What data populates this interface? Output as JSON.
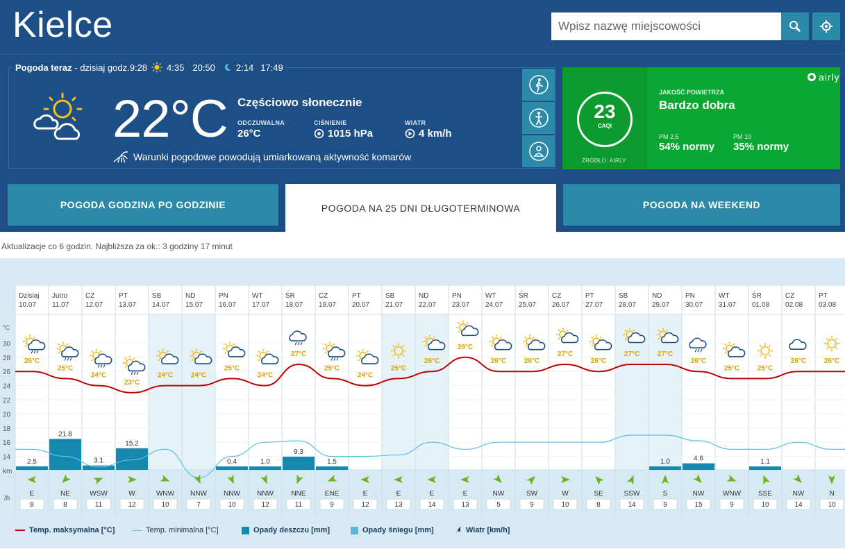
{
  "header": {
    "city": "Kielce",
    "search_placeholder": "Wpisz nazwę miejscowości"
  },
  "now": {
    "label": "Pogoda teraz",
    "day_time": "- dzisiaj godz.9:28",
    "sunrise": "4:35",
    "sunset": "20:50",
    "moonrise": "2:14",
    "moonset": "17:49",
    "temperature": "22°C",
    "condition": "Częściowo słonecznie",
    "feels_label": "ODCZUWALNA",
    "feels_value": "26°C",
    "pressure_label": "CIŚNIENIE",
    "pressure_value": "1015 hPa",
    "wind_label": "WIATR",
    "wind_value": "4 km/h",
    "mosquito_text": "Warunki pogodowe powodują umiarkowaną aktywność komarów"
  },
  "air": {
    "value": "23",
    "unit": "CAQI",
    "brand": "airly",
    "quality_label": "JAKOŚĆ POWIETRZA",
    "quality_value": "Bardzo dobra",
    "pm25_label": "PM 2.5",
    "pm25_value": "54% normy",
    "pm10_label": "PM 10",
    "pm10_value": "35% normy",
    "source": "ŹRÓDŁO: AIRLY",
    "color": "#0aa832"
  },
  "tabs": [
    {
      "label": "POGODA GODZINA PO GODZINIE",
      "active": false
    },
    {
      "label": "POGODA NA 25 DNI DŁUGOTERMINOWA",
      "active": true
    },
    {
      "label": "POGODA NA WEEKEND",
      "active": false
    }
  ],
  "update_text": "Aktualizacje co 6 godzin. Najbliższa za ok.: 3 godziny 17 minut",
  "chart_data": {
    "type": "line",
    "days": [
      "Dzisiaj",
      "Jutro",
      "CZ",
      "PT",
      "SB",
      "ND",
      "PN",
      "WT",
      "ŚR",
      "CZ",
      "PT",
      "SB",
      "ND",
      "PN",
      "WT",
      "ŚR",
      "CZ",
      "PT",
      "SB",
      "ND",
      "PN",
      "WT",
      "ŚR",
      "CZ",
      "PT"
    ],
    "dates": [
      "10.07",
      "11.07",
      "12.07",
      "13.07",
      "14.07",
      "15.07",
      "16.07",
      "17.07",
      "18.07",
      "19.07",
      "20.07",
      "21.07",
      "22.07",
      "23.07",
      "24.07",
      "25.07",
      "26.07",
      "27.07",
      "28.07",
      "29.07",
      "30.07",
      "31.07",
      "01.08",
      "02.08",
      "03.08"
    ],
    "weekend": [
      false,
      false,
      false,
      false,
      true,
      true,
      false,
      false,
      false,
      false,
      false,
      true,
      true,
      false,
      false,
      false,
      false,
      false,
      true,
      true,
      false,
      false,
      false,
      false,
      false
    ],
    "icons": [
      "sun-cloud-rain",
      "sun-cloud-rain",
      "sun-cloud-rain",
      "sun-cloud-rain",
      "sun-cloud",
      "sun-cloud",
      "sun-cloud",
      "sun-cloud",
      "cloud-rain",
      "sun-cloud-rain",
      "sun-cloud",
      "sun",
      "sun-cloud",
      "sun-cloud",
      "sun-cloud",
      "sun-cloud",
      "sun-cloud",
      "sun-cloud",
      "sun-cloud",
      "sun-cloud",
      "cloud-rain",
      "sun-cloud",
      "sun",
      "cloud",
      "sun"
    ],
    "temp_max": [
      26,
      25,
      24,
      23,
      24,
      24,
      25,
      24,
      27,
      25,
      24,
      25,
      26,
      28,
      26,
      26,
      27,
      26,
      27,
      27,
      26,
      25,
      25,
      26,
      26
    ],
    "temp_max_labels": [
      "26°C",
      "25°C",
      "24°C",
      "23°C",
      "24°C",
      "24°C",
      "25°C",
      "24°C",
      "27°C",
      "25°C",
      "24°C",
      "25°C",
      "26°C",
      "28°C",
      "26°C",
      "26°C",
      "27°C",
      "26°C",
      "27°C",
      "27°C",
      "26°C",
      "25°C",
      "25°C",
      "26°C",
      "26°C"
    ],
    "temp_min": [
      15,
      14,
      12.5,
      13.5,
      15,
      11,
      14,
      16,
      16.2,
      14,
      14,
      14.2,
      16,
      15,
      16,
      16,
      16,
      16,
      17,
      17,
      16.2,
      15,
      15,
      16,
      15
    ],
    "rain": [
      2.5,
      21.8,
      3.1,
      15.2,
      0,
      0,
      0.4,
      1.0,
      9.3,
      1.5,
      0,
      0,
      0,
      0,
      0,
      0,
      0,
      0,
      0,
      1.0,
      4.6,
      0,
      1.1,
      0,
      0
    ],
    "rain_labels": [
      "2.5",
      "21.8",
      "3.1",
      "15.2",
      "",
      "",
      "0.4",
      "1.0",
      "9.3",
      "1.5",
      "",
      "",
      "",
      "",
      "",
      "",
      "",
      "",
      "",
      "1.0",
      "4.6",
      "",
      "1.1",
      "",
      ""
    ],
    "wind_dir": [
      "E",
      "NE",
      "WSW",
      "W",
      "WNW",
      "NNW",
      "NNW",
      "NNW",
      "NNE",
      "ENE",
      "E",
      "E",
      "E",
      "E",
      "NW",
      "SW",
      "W",
      "SE",
      "SSW",
      "S",
      "NW",
      "WNW",
      "SSE",
      "NW",
      "N"
    ],
    "wind_speed": [
      "8",
      "8",
      "11",
      "12",
      "10",
      "7",
      "10",
      "12",
      "11",
      "9",
      "12",
      "13",
      "14",
      "13",
      "5",
      "9",
      "10",
      "8",
      "14",
      "9",
      "15",
      "9",
      "10",
      "14",
      "10"
    ],
    "y_ticks": [
      "30",
      "28",
      "26",
      "24",
      "22",
      "20",
      "18",
      "16",
      "14"
    ],
    "y_unit": "°C",
    "wind_unit_top": "km",
    "wind_unit_bottom": "/h",
    "ylim": [
      12,
      31
    ],
    "colors": {
      "max": "#c00000",
      "min": "#5bc0e8",
      "rain": "#1688b0",
      "snow": "#58b8e0"
    }
  },
  "legend": {
    "max": "Temp. maksymalna [°C]",
    "min": "Temp. minimalna [°C]",
    "rain": "Opady deszczu [mm]",
    "snow": "Opady śniegu [mm]",
    "wind": "Wiatr [km/h]"
  }
}
